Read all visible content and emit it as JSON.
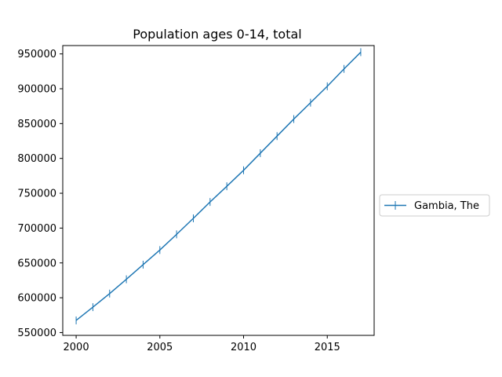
{
  "chart_data": {
    "type": "line",
    "title": "Population ages 0-14, total",
    "xlabel": "",
    "ylabel": "",
    "xlim": [
      1999.2,
      2017.8
    ],
    "ylim": [
      546000,
      962000
    ],
    "x_ticks": [
      2000,
      2005,
      2010,
      2015
    ],
    "y_ticks": [
      550000,
      600000,
      650000,
      700000,
      750000,
      800000,
      850000,
      900000,
      950000
    ],
    "grid": false,
    "legend_position": "right",
    "colors": {
      "series": "#1f77b4"
    },
    "series": [
      {
        "name": "Gambia, The",
        "marker": "vline",
        "x": [
          2000,
          2001,
          2002,
          2003,
          2004,
          2005,
          2006,
          2007,
          2008,
          2009,
          2010,
          2011,
          2012,
          2013,
          2014,
          2015,
          2016,
          2017
        ],
        "y": [
          567500,
          586500,
          606000,
          626500,
          647500,
          668500,
          691000,
          714000,
          737500,
          760000,
          783000,
          807500,
          832000,
          856500,
          880000,
          903500,
          928500,
          952500
        ]
      }
    ]
  }
}
